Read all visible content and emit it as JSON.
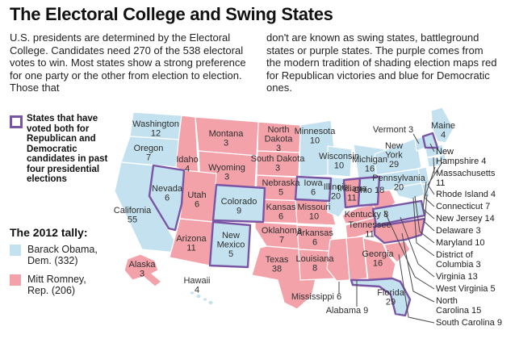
{
  "title": "The Electoral College and Swing States",
  "intro": {
    "col1": "U.S. presidents are determined by the Electoral College. Candidates need 270 of the 538 electoral votes to win. Most states show a strong preference for one party or the other from election to election. Those that",
    "col2": "don't are known as swing states, battleground states or purple states. The purple comes from the modern tradition of shading election maps red for Republican victories and blue for Democratic ones."
  },
  "legend": {
    "swing_label": "States that have voted both for Republican and Democratic candidates in past four presidential elections",
    "tally_title": "The 2012 tally:",
    "obama_label": "Barack Obama, Dem. (332)",
    "romney_label": "Mitt Romney, Rep. (206)"
  },
  "colors": {
    "dem": "#c3e1ef",
    "rep": "#f3a2aa",
    "swing_outline": "#7a55a4",
    "leader": "#4a4a4a",
    "state_border": "#ffffff"
  },
  "map": {
    "states": [
      {
        "name": "Washington",
        "votes": 12,
        "party": "dem",
        "swing": false
      },
      {
        "name": "Oregon",
        "votes": 7,
        "party": "dem",
        "swing": false
      },
      {
        "name": "California",
        "votes": 55,
        "party": "dem",
        "swing": false
      },
      {
        "name": "Idaho",
        "votes": 4,
        "party": "rep",
        "swing": false
      },
      {
        "name": "Montana",
        "votes": 3,
        "party": "rep",
        "swing": false
      },
      {
        "name": "Wyoming",
        "votes": 3,
        "party": "rep",
        "swing": false
      },
      {
        "name": "Nevada",
        "votes": 6,
        "party": "dem",
        "swing": true
      },
      {
        "name": "Utah",
        "votes": 6,
        "party": "rep",
        "swing": false
      },
      {
        "name": "Colorado",
        "votes": 9,
        "party": "dem",
        "swing": true
      },
      {
        "name": "Arizona",
        "votes": 11,
        "party": "rep",
        "swing": false
      },
      {
        "name": "New Mexico",
        "votes": 5,
        "party": "dem",
        "swing": true
      },
      {
        "name": "North Dakota",
        "votes": 3,
        "party": "rep",
        "swing": false
      },
      {
        "name": "South Dakota",
        "votes": 3,
        "party": "rep",
        "swing": false
      },
      {
        "name": "Nebraska",
        "votes": 5,
        "party": "rep",
        "swing": false
      },
      {
        "name": "Kansas",
        "votes": 6,
        "party": "rep",
        "swing": false
      },
      {
        "name": "Oklahoma",
        "votes": 7,
        "party": "rep",
        "swing": false
      },
      {
        "name": "Texas",
        "votes": 38,
        "party": "rep",
        "swing": false
      },
      {
        "name": "Minnesota",
        "votes": 10,
        "party": "dem",
        "swing": false
      },
      {
        "name": "Iowa",
        "votes": 6,
        "party": "dem",
        "swing": true
      },
      {
        "name": "Missouri",
        "votes": 10,
        "party": "rep",
        "swing": false
      },
      {
        "name": "Arkansas",
        "votes": 6,
        "party": "rep",
        "swing": false
      },
      {
        "name": "Louisiana",
        "votes": 8,
        "party": "rep",
        "swing": false
      },
      {
        "name": "Wisconsin",
        "votes": 10,
        "party": "dem",
        "swing": false
      },
      {
        "name": "Illinois",
        "votes": 20,
        "party": "dem",
        "swing": false
      },
      {
        "name": "Michigan",
        "votes": 16,
        "party": "dem",
        "swing": false
      },
      {
        "name": "Indiana",
        "votes": 11,
        "party": "rep",
        "swing": true
      },
      {
        "name": "Ohio",
        "votes": 18,
        "party": "dem",
        "swing": true
      },
      {
        "name": "Kentucky",
        "votes": 8,
        "party": "rep",
        "swing": false
      },
      {
        "name": "Tennessee",
        "votes": 11,
        "party": "rep",
        "swing": false
      },
      {
        "name": "Mississippi",
        "votes": 6,
        "party": "rep",
        "swing": false
      },
      {
        "name": "Alabama",
        "votes": 9,
        "party": "rep",
        "swing": false
      },
      {
        "name": "Georgia",
        "votes": 16,
        "party": "rep",
        "swing": false
      },
      {
        "name": "Florida",
        "votes": 29,
        "party": "dem",
        "swing": true
      },
      {
        "name": "South Carolina",
        "votes": 9,
        "party": "rep",
        "swing": false
      },
      {
        "name": "North Carolina",
        "votes": 15,
        "party": "rep",
        "swing": true
      },
      {
        "name": "Virginia",
        "votes": 13,
        "party": "dem",
        "swing": true
      },
      {
        "name": "West Virginia",
        "votes": 5,
        "party": "rep",
        "swing": false
      },
      {
        "name": "Pennsylvania",
        "votes": 20,
        "party": "dem",
        "swing": false
      },
      {
        "name": "New York",
        "votes": 29,
        "party": "dem",
        "swing": false
      },
      {
        "name": "Vermont",
        "votes": 3,
        "party": "dem",
        "swing": false
      },
      {
        "name": "New Hampshire",
        "votes": 4,
        "party": "dem",
        "swing": true
      },
      {
        "name": "Maine",
        "votes": 4,
        "party": "dem",
        "swing": false
      },
      {
        "name": "Massachusetts",
        "votes": 11,
        "party": "dem",
        "swing": false
      },
      {
        "name": "Rhode Island",
        "votes": 4,
        "party": "dem",
        "swing": false
      },
      {
        "name": "Connecticut",
        "votes": 7,
        "party": "dem",
        "swing": false
      },
      {
        "name": "New Jersey",
        "votes": 14,
        "party": "dem",
        "swing": false
      },
      {
        "name": "Delaware",
        "votes": 3,
        "party": "dem",
        "swing": false
      },
      {
        "name": "Maryland",
        "votes": 10,
        "party": "dem",
        "swing": false
      },
      {
        "name": "District of Columbia",
        "votes": 3,
        "party": "dem",
        "swing": false
      },
      {
        "name": "Alaska",
        "votes": 3,
        "party": "rep",
        "swing": false
      },
      {
        "name": "Hawaii",
        "votes": 4,
        "party": "dem",
        "swing": false
      }
    ]
  }
}
